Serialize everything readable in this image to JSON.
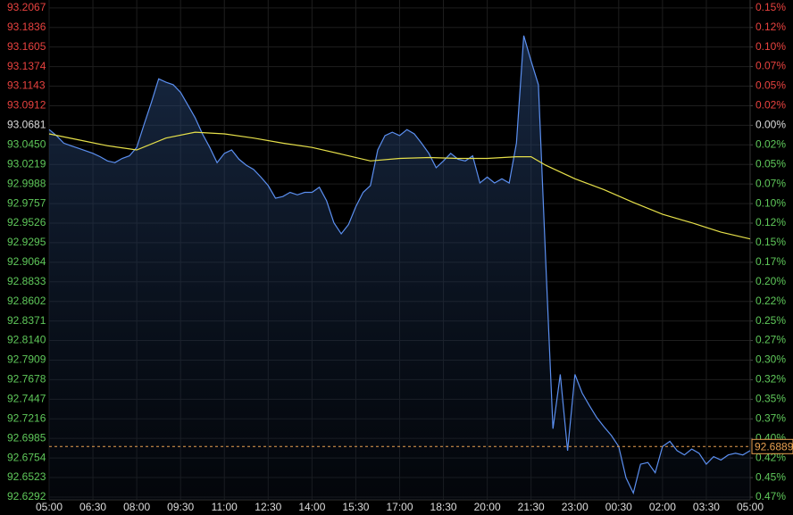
{
  "chart_data": {
    "type": "line",
    "xlim": [
      0,
      24
    ],
    "xticks": [
      {
        "value": 0,
        "label": "05:00"
      },
      {
        "value": 1.5,
        "label": "06:30"
      },
      {
        "value": 3,
        "label": "08:00"
      },
      {
        "value": 4.5,
        "label": "09:30"
      },
      {
        "value": 6,
        "label": "11:00"
      },
      {
        "value": 7.5,
        "label": "12:30"
      },
      {
        "value": 9,
        "label": "14:00"
      },
      {
        "value": 10.5,
        "label": "15:30"
      },
      {
        "value": 12,
        "label": "17:00"
      },
      {
        "value": 13.5,
        "label": "18:30"
      },
      {
        "value": 15,
        "label": "20:00"
      },
      {
        "value": 16.5,
        "label": "21:30"
      },
      {
        "value": 18,
        "label": "23:00"
      },
      {
        "value": 19.5,
        "label": "00:30"
      },
      {
        "value": 21,
        "label": "02:00"
      },
      {
        "value": 22.5,
        "label": "03:30"
      },
      {
        "value": 24,
        "label": "05:00"
      }
    ],
    "ylim": [
      92.626,
      93.216
    ],
    "yticks": [
      93.2067,
      93.1836,
      93.1605,
      93.1374,
      93.1143,
      93.0912,
      93.0681,
      {
        "value": 93.045,
        "label": "93.0450"
      },
      93.0219,
      92.9988,
      92.9757,
      92.9526,
      92.9295,
      92.9064,
      92.8833,
      92.8602,
      92.8371,
      {
        "value": 92.814,
        "label": "92.8140"
      },
      92.7909,
      92.7678,
      92.7447,
      92.7216,
      92.6985,
      92.6754,
      92.6523,
      92.6292
    ],
    "y2lim": [
      -0.475,
      0.1589
    ],
    "y2ticks": [
      {
        "value": 0.1489,
        "label": "0.15%"
      },
      {
        "value": 0.1241,
        "label": "0.12%"
      },
      {
        "value": 0.0993,
        "label": "0.10%"
      },
      {
        "value": 0.0745,
        "label": "0.07%"
      },
      {
        "value": 0.0496,
        "label": "0.05%"
      },
      {
        "value": 0.0248,
        "label": "0.02%"
      },
      {
        "value": 0,
        "label": "0.00%"
      },
      {
        "value": -0.0248,
        "label": "0.02%"
      },
      {
        "value": -0.0496,
        "label": "0.05%"
      },
      {
        "value": -0.0745,
        "label": "0.07%"
      },
      {
        "value": -0.0993,
        "label": "0.10%"
      },
      {
        "value": -0.1241,
        "label": "0.12%"
      },
      {
        "value": -0.1489,
        "label": "0.15%"
      },
      {
        "value": -0.1737,
        "label": "0.17%"
      },
      {
        "value": -0.1986,
        "label": "0.20%"
      },
      {
        "value": -0.2234,
        "label": "0.22%"
      },
      {
        "value": -0.2482,
        "label": "0.25%"
      },
      {
        "value": -0.273,
        "label": "0.27%"
      },
      {
        "value": -0.2978,
        "label": "0.30%"
      },
      {
        "value": -0.3227,
        "label": "0.32%"
      },
      {
        "value": -0.3475,
        "label": "0.35%"
      },
      {
        "value": -0.3723,
        "label": "0.37%"
      },
      {
        "value": -0.3971,
        "label": "0.40%"
      },
      {
        "value": -0.4219,
        "label": "0.42%"
      },
      {
        "value": -0.4468,
        "label": "0.45%"
      },
      {
        "value": -0.4716,
        "label": "0.47%"
      }
    ],
    "grid": true,
    "last_price": 92.6889,
    "series": [
      {
        "color": "#5b8ff0",
        "fill": true,
        "x": [
          0,
          0.25,
          0.5,
          0.75,
          1,
          1.25,
          1.5,
          1.75,
          2,
          2.25,
          2.5,
          2.75,
          3,
          3.25,
          3.5,
          3.75,
          4,
          4.25,
          4.5,
          4.75,
          5,
          5.25,
          5.5,
          5.75,
          6,
          6.25,
          6.5,
          6.75,
          7,
          7.25,
          7.5,
          7.75,
          8,
          8.25,
          8.5,
          8.75,
          9,
          9.25,
          9.5,
          9.75,
          10,
          10.25,
          10.5,
          10.75,
          11,
          11.25,
          11.5,
          11.75,
          12,
          12.25,
          12.5,
          12.75,
          13,
          13.25,
          13.5,
          13.75,
          14,
          14.25,
          14.5,
          14.75,
          15,
          15.25,
          15.5,
          15.75,
          16,
          16.25,
          16.5,
          16.75,
          17,
          17.25,
          17.5,
          17.75,
          18,
          18.25,
          18.5,
          18.75,
          19,
          19.25,
          19.5,
          19.75,
          20,
          20.25,
          20.5,
          20.75,
          21,
          21.25,
          21.5,
          21.75,
          22,
          22.25,
          22.5,
          22.75,
          23,
          23.25,
          23.5,
          23.75,
          24
        ],
        "values": [
          93.063,
          93.056,
          93.047,
          93.044,
          93.041,
          93.038,
          93.035,
          93.031,
          93.026,
          93.024,
          93.029,
          93.032,
          93.042,
          93.069,
          93.095,
          93.123,
          93.119,
          93.116,
          93.107,
          93.092,
          93.077,
          93.058,
          93.042,
          93.024,
          93.035,
          93.039,
          93.028,
          93.021,
          93.016,
          93.007,
          92.997,
          92.982,
          92.984,
          92.989,
          92.986,
          92.989,
          92.989,
          92.995,
          92.979,
          92.953,
          92.94,
          92.951,
          92.972,
          92.989,
          92.997,
          93.039,
          93.056,
          93.06,
          93.056,
          93.063,
          93.058,
          93.047,
          93.035,
          93.018,
          93.026,
          93.035,
          93.028,
          93.026,
          93.032,
          93.0,
          93.007,
          93.0,
          93.005,
          93.0,
          93.047,
          93.174,
          93.144,
          93.116,
          92.91,
          92.71,
          92.774,
          92.684,
          92.774,
          92.752,
          92.737,
          92.723,
          92.712,
          92.702,
          92.689,
          92.652,
          92.634,
          92.668,
          92.67,
          92.658,
          92.689,
          92.695,
          92.684,
          92.679,
          92.686,
          92.681,
          92.668,
          92.677,
          92.673,
          92.679,
          92.681,
          92.679,
          92.684
        ]
      },
      {
        "color": "#e6e04a",
        "x": [
          0,
          1,
          2,
          3,
          4,
          5,
          6,
          7,
          8,
          9,
          10,
          11,
          12,
          13,
          14,
          15,
          16,
          16.5,
          17,
          18,
          19,
          20,
          21,
          22,
          23,
          24
        ],
        "values": [
          93.058,
          93.051,
          93.044,
          93.039,
          93.053,
          93.06,
          93.058,
          93.053,
          93.047,
          93.042,
          93.034,
          93.026,
          93.029,
          93.03,
          93.029,
          93.029,
          93.031,
          93.031,
          93.021,
          93.005,
          92.992,
          92.977,
          92.963,
          92.953,
          92.942,
          92.934
        ]
      }
    ]
  }
}
